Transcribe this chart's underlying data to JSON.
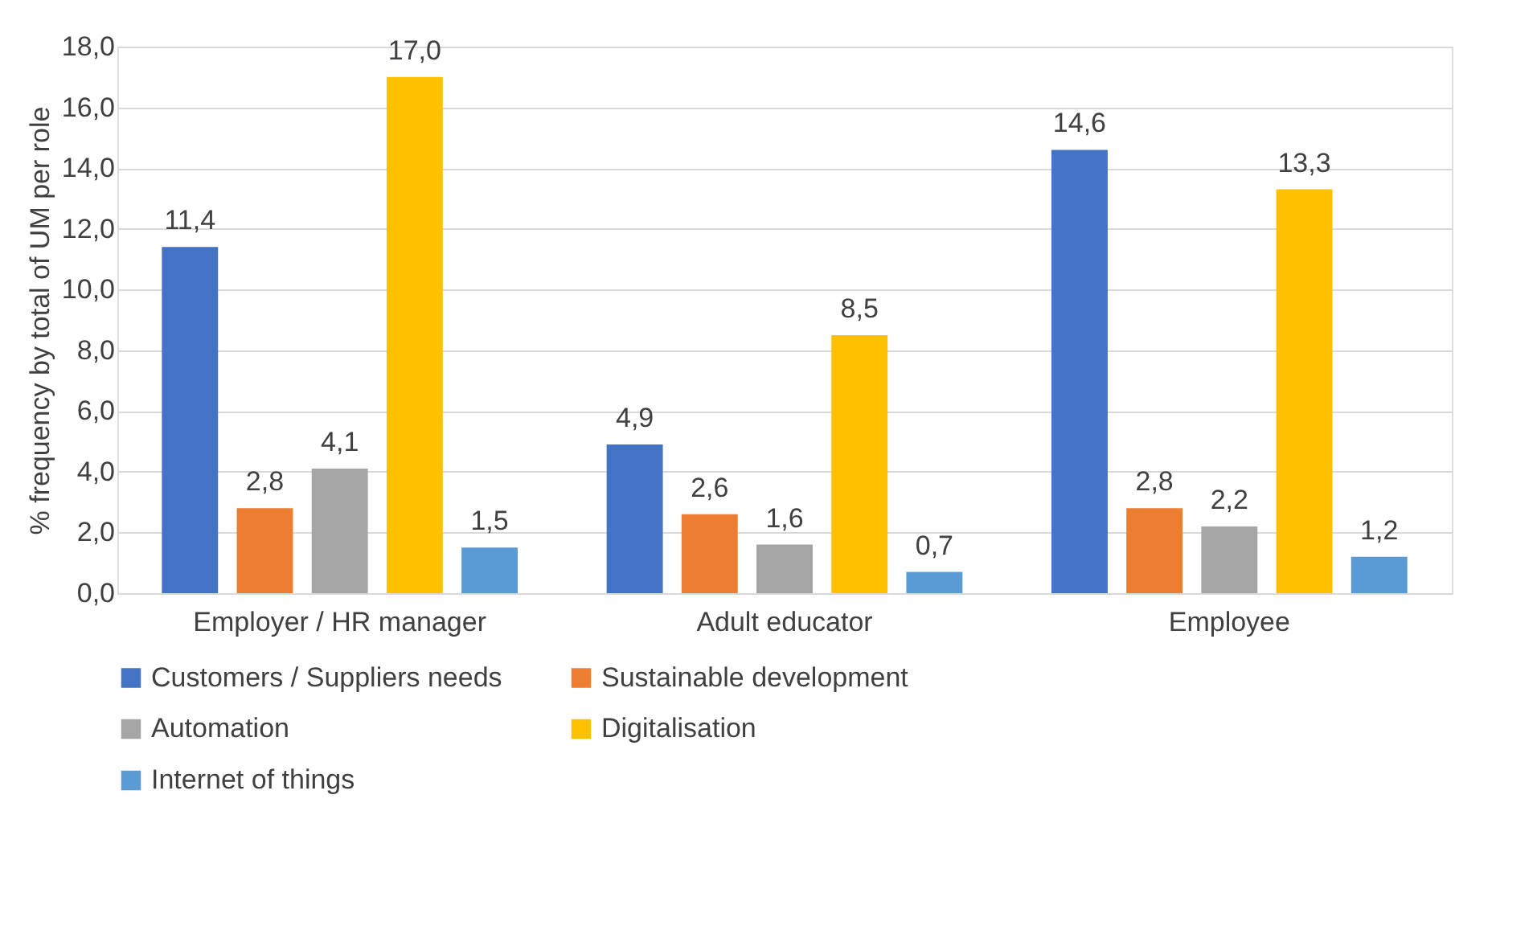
{
  "chart_data": {
    "type": "bar",
    "ylabel": "% frequency by total of UM per role",
    "categories": [
      "Employer / HR manager",
      "Adult educator",
      "Employee"
    ],
    "series": [
      {
        "name": "Customers / Suppliers needs",
        "color": "#4472c4",
        "values": [
          11.4,
          4.9,
          14.6
        ],
        "value_labels": [
          "11,4",
          "4,9",
          "14,6"
        ]
      },
      {
        "name": "Sustainable development",
        "color": "#ed7d31",
        "values": [
          2.8,
          2.6,
          2.8
        ],
        "value_labels": [
          "2,8",
          "2,6",
          "2,8"
        ]
      },
      {
        "name": "Automation",
        "color": "#a5a5a5",
        "values": [
          4.1,
          1.6,
          2.2
        ],
        "value_labels": [
          "4,1",
          "1,6",
          "2,2"
        ]
      },
      {
        "name": "Digitalisation",
        "color": "#ffc000",
        "values": [
          17.0,
          8.5,
          13.3
        ],
        "value_labels": [
          "17,0",
          "8,5",
          "13,3"
        ]
      },
      {
        "name": "Internet of things",
        "color": "#5b9bd5",
        "values": [
          1.5,
          0.7,
          1.2
        ],
        "value_labels": [
          "1,5",
          "0,7",
          "1,2"
        ]
      }
    ],
    "ylim": [
      0,
      18
    ],
    "yticks": [
      {
        "value": 0,
        "label": "0,0"
      },
      {
        "value": 2,
        "label": "2,0"
      },
      {
        "value": 4,
        "label": "4,0"
      },
      {
        "value": 6,
        "label": "6,0"
      },
      {
        "value": 8,
        "label": "8,0"
      },
      {
        "value": 10,
        "label": "10,0"
      },
      {
        "value": 12,
        "label": "12,0"
      },
      {
        "value": 14,
        "label": "14,0"
      },
      {
        "value": 16,
        "label": "16,0"
      },
      {
        "value": 18,
        "label": "18,0"
      }
    ],
    "grid": "y",
    "legend": "bottom"
  }
}
